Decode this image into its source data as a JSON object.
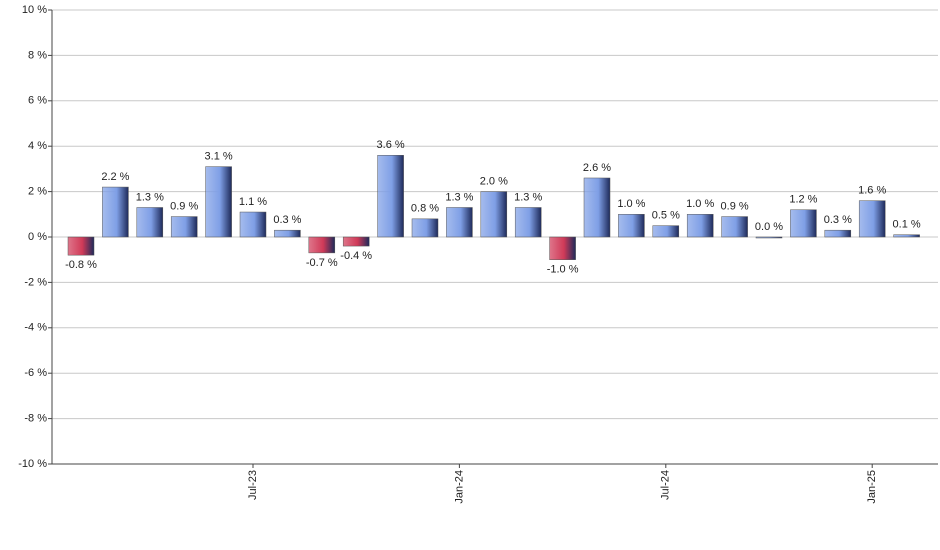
{
  "chart_data": {
    "type": "bar",
    "categories": [
      null,
      null,
      null,
      null,
      null,
      "Jul-23",
      null,
      null,
      null,
      null,
      null,
      "Jan-24",
      null,
      null,
      null,
      null,
      null,
      "Jul-24",
      null,
      null,
      null,
      null,
      null,
      "Jan-25",
      null
    ],
    "values": [
      -0.8,
      2.2,
      1.3,
      0.9,
      3.1,
      1.1,
      0.3,
      -0.7,
      -0.4,
      3.6,
      0.8,
      1.3,
      2.0,
      1.3,
      -1.0,
      2.6,
      1.0,
      0.5,
      1.0,
      0.9,
      0.0,
      1.2,
      0.3,
      1.6,
      0.1
    ],
    "value_labels": [
      "-0.8 %",
      "2.2 %",
      "1.3 %",
      "0.9 %",
      "3.1 %",
      "1.1 %",
      "0.3 %",
      "-0.7 %",
      "-0.4 %",
      "3.6 %",
      "0.8 %",
      "1.3 %",
      "2.0 %",
      "1.3 %",
      "-1.0 %",
      "2.6 %",
      "1.0 %",
      "0.5 %",
      "1.0 %",
      "0.9 %",
      "0.0 %",
      "1.2 %",
      "0.3 %",
      "1.6 %",
      "0.1 %"
    ],
    "positive_color": "#7f9fe6",
    "negative_color": "#d03a58",
    "ylim": [
      -10,
      10
    ],
    "yticks": [
      {
        "value": -10,
        "label": "-10 %"
      },
      {
        "value": -8,
        "label": "-8 %"
      },
      {
        "value": -6,
        "label": "-6 %"
      },
      {
        "value": -4,
        "label": "-4 %"
      },
      {
        "value": -2,
        "label": "-2 %"
      },
      {
        "value": 0,
        "label": "0 %"
      },
      {
        "value": 2,
        "label": "2 %"
      },
      {
        "value": 4,
        "label": "4 %"
      },
      {
        "value": 6,
        "label": "6 %"
      },
      {
        "value": 8,
        "label": "8 %"
      },
      {
        "value": 10,
        "label": "10 %"
      }
    ],
    "grid": true
  }
}
